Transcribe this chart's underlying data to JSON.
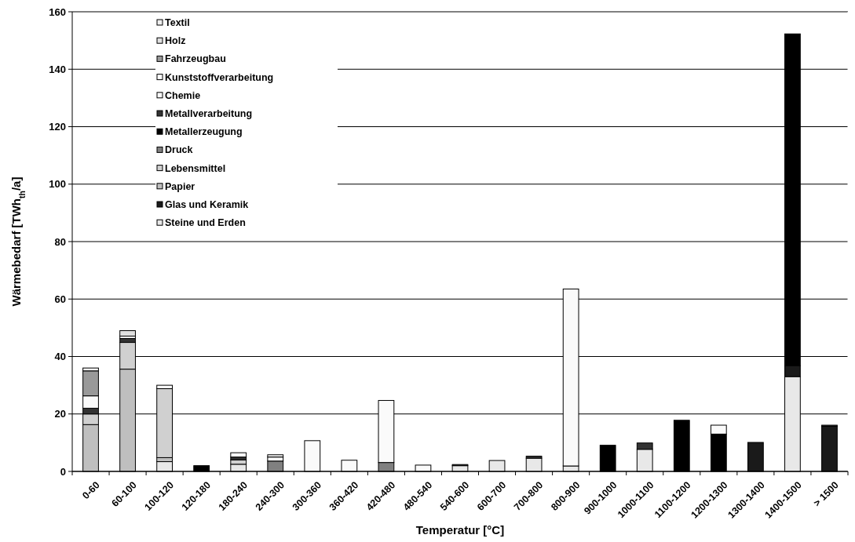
{
  "chart_data": {
    "type": "bar",
    "stacked": true,
    "xlabel": "Temperatur [°C]",
    "ylabel": "Wärmebedarf [TWh$_{th}$/a]",
    "categories": [
      "0-60",
      "60-100",
      "100-120",
      "120-180",
      "180-240",
      "240-300",
      "300-360",
      "360-420",
      "420-480",
      "480-540",
      "540-600",
      "600-700",
      "700-800",
      "800-900",
      "900-1000",
      "1000-1100",
      "1100-1200",
      "1200-1300",
      "1300-1400",
      "1400-1500",
      "> 1500"
    ],
    "ylim": [
      0,
      160
    ],
    "yticks": [
      0,
      20,
      40,
      60,
      80,
      100,
      120,
      140,
      160
    ],
    "grid": "y",
    "legend": "top left",
    "series": [
      {
        "name": "Steine und Erden",
        "color": "#e8e8e8",
        "values": [
          null,
          null,
          3.4,
          null,
          2.5,
          null,
          null,
          null,
          null,
          null,
          2.0,
          3.8,
          4.6,
          1.9,
          null,
          7.7,
          null,
          null,
          null,
          33,
          null
        ]
      },
      {
        "name": "Glas und Keramik",
        "color": "#1a1a1a",
        "values": [
          null,
          null,
          null,
          null,
          null,
          null,
          null,
          null,
          null,
          null,
          null,
          null,
          null,
          null,
          null,
          null,
          null,
          null,
          10.1,
          3.8,
          15.7
        ]
      },
      {
        "name": "Papier",
        "color": "#bfbfbf",
        "values": [
          16.3,
          35.6,
          1.4,
          null,
          null,
          null,
          null,
          null,
          null,
          null,
          null,
          null,
          null,
          null,
          null,
          null,
          null,
          null,
          null,
          null,
          null
        ]
      },
      {
        "name": "Lebensmittel",
        "color": "#d0d0d0",
        "values": [
          3.7,
          9.3,
          24,
          null,
          1.5,
          null,
          null,
          null,
          null,
          null,
          null,
          null,
          null,
          null,
          null,
          null,
          null,
          null,
          null,
          null,
          null
        ]
      },
      {
        "name": "Druck",
        "color": "#808080",
        "values": [
          null,
          null,
          null,
          null,
          null,
          3.6,
          null,
          null,
          3.1,
          null,
          null,
          null,
          null,
          null,
          null,
          null,
          null,
          null,
          null,
          null,
          null
        ]
      },
      {
        "name": "Metallerzeugung",
        "color": "#000000",
        "values": [
          null,
          null,
          null,
          2,
          null,
          null,
          null,
          null,
          null,
          null,
          null,
          null,
          null,
          null,
          9.1,
          null,
          17.8,
          13.0,
          null,
          115.5,
          null
        ]
      },
      {
        "name": "Metallverarbeitung",
        "color": "#333333",
        "values": [
          2,
          1.4,
          null,
          null,
          1,
          null,
          null,
          null,
          null,
          null,
          0.4,
          null,
          0.7,
          null,
          null,
          2.2,
          null,
          null,
          null,
          null,
          0.4
        ]
      },
      {
        "name": "Chemie",
        "color": "#fafafa",
        "values": [
          4.3,
          0.8,
          1.2,
          null,
          1.5,
          1.4,
          10.7,
          3.9,
          21.6,
          2.2,
          null,
          null,
          null,
          61.6,
          null,
          null,
          null,
          3.1,
          null,
          null,
          null
        ]
      },
      {
        "name": "Kunststoffverarbeitung",
        "color": "#ffffff",
        "values": [
          null,
          null,
          null,
          null,
          null,
          null,
          null,
          null,
          null,
          null,
          null,
          null,
          null,
          null,
          null,
          null,
          null,
          null,
          null,
          null,
          null
        ]
      },
      {
        "name": "Fahrzeugbau",
        "color": "#999999",
        "values": [
          8.7,
          null,
          null,
          null,
          null,
          null,
          null,
          null,
          null,
          null,
          null,
          null,
          null,
          null,
          null,
          null,
          null,
          null,
          null,
          null,
          null
        ]
      },
      {
        "name": "Holz",
        "color": "#e0e0e0",
        "values": [
          null,
          1.9,
          null,
          null,
          null,
          null,
          null,
          null,
          null,
          null,
          null,
          null,
          null,
          null,
          null,
          null,
          null,
          null,
          null,
          null,
          null
        ]
      },
      {
        "name": "Textil",
        "color": "#f0f0f0",
        "values": [
          1,
          null,
          null,
          null,
          null,
          0.8,
          null,
          null,
          null,
          null,
          null,
          null,
          null,
          null,
          null,
          null,
          null,
          null,
          null,
          null,
          null
        ]
      }
    ]
  }
}
